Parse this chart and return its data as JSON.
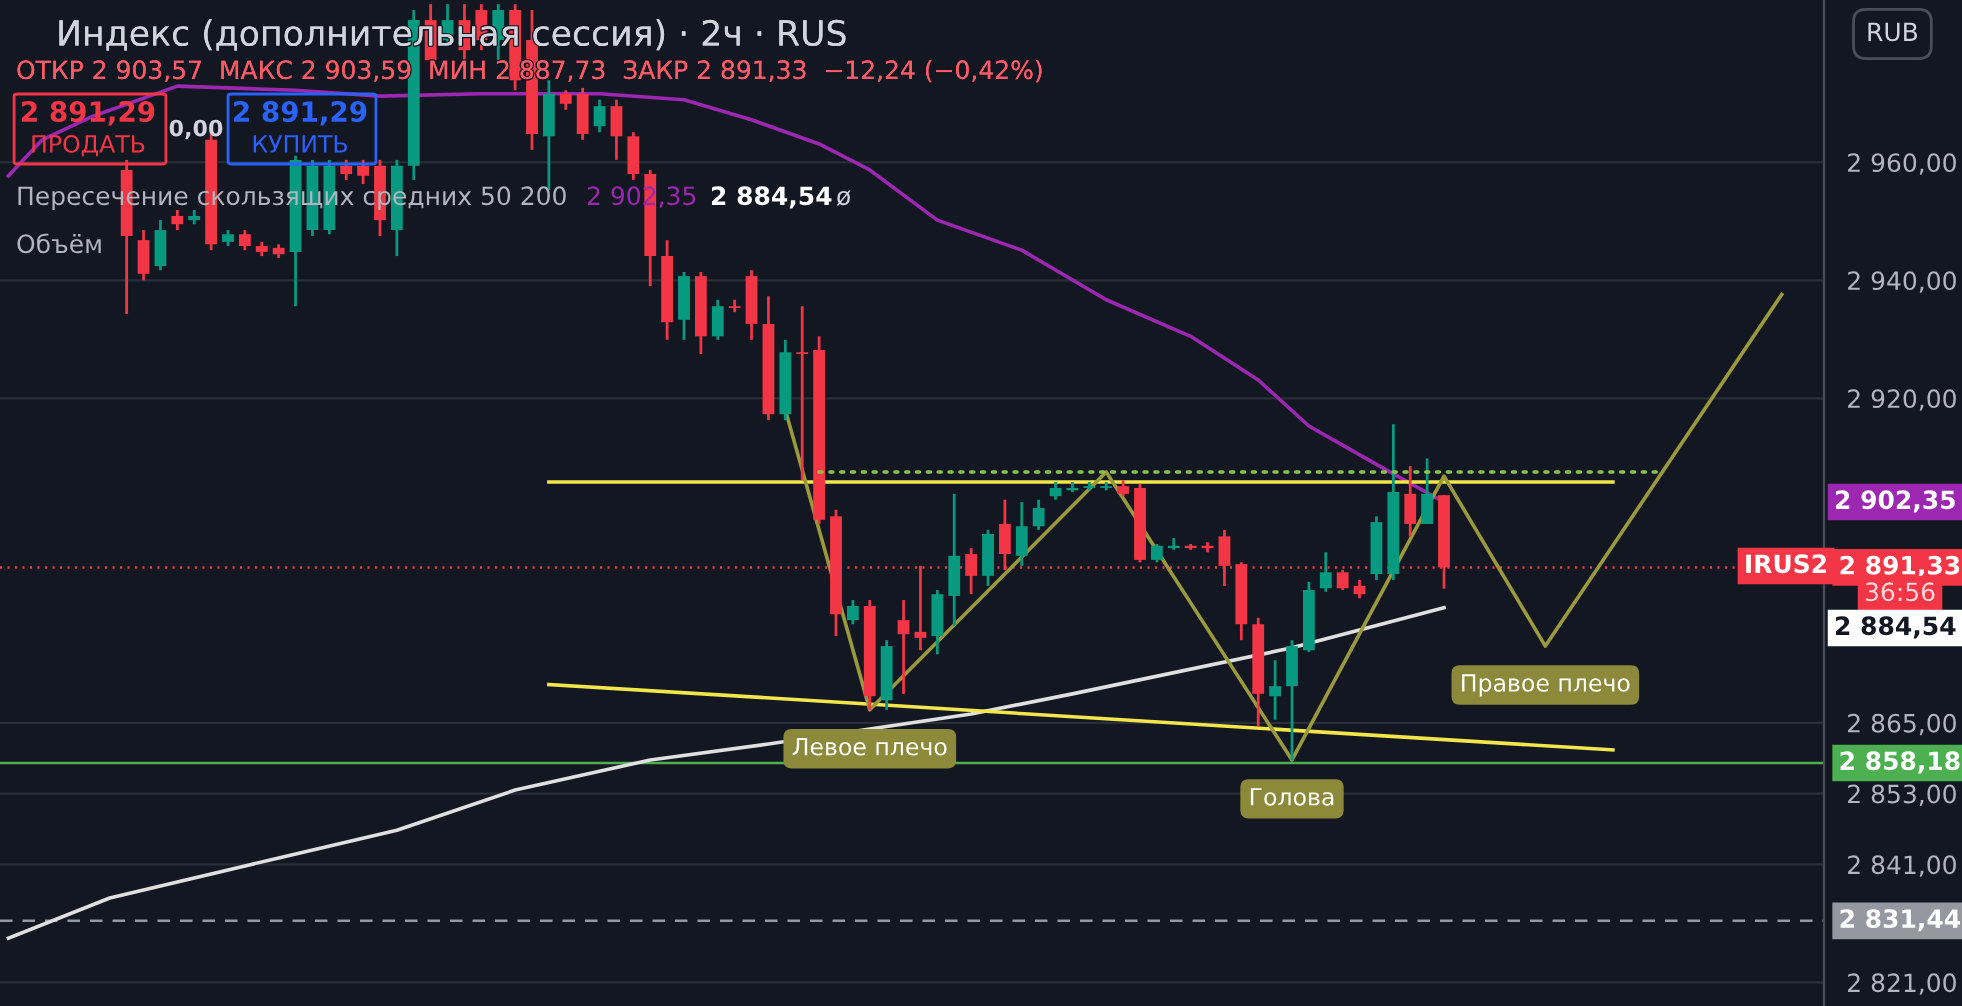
{
  "chart_data": {
    "type": "candlestick",
    "title": "Индекс (дополнительная сессия) · 2ч · RUS",
    "subtitle": "ОТКР 2 903,57  МАКС 2 903,59  МИН 2 887,73  ЗАКР 2 891,33  −12,24 (−0,42%)",
    "categories": [
      null,
      null,
      null,
      null,
      null,
      null,
      null,
      null,
      null,
      null,
      null,
      null,
      null,
      null,
      null,
      null,
      null,
      null,
      null,
      null,
      null,
      null,
      null,
      null,
      null,
      null,
      null,
      null,
      null,
      null,
      null,
      null,
      null,
      null,
      null,
      null,
      null,
      null,
      null,
      null,
      null,
      null,
      null,
      null,
      null,
      null,
      null,
      null,
      null,
      null,
      null,
      null,
      null,
      null,
      null,
      null,
      null,
      null,
      null,
      null,
      null,
      null,
      null,
      null,
      null,
      null,
      null,
      null,
      null,
      null,
      null,
      null,
      null,
      null,
      null,
      null,
      null,
      null,
      null,
      null,
      null,
      null,
      null,
      null,
      null,
      null,
      null,
      null,
      null,
      null,
      null,
      null,
      null,
      null,
      null,
      null,
      null,
      null,
      null,
      null,
      null,
      null,
      null,
      null,
      null,
      null,
      null,
      null
    ],
    "ohlc": [
      null,
      null,
      null,
      null,
      null,
      null,
      null,
      [
        2958.7,
        2960.4,
        2934.3,
        2947.5
      ],
      [
        2946.8,
        2948.5,
        2940.0,
        2941.1
      ],
      [
        2942.4,
        2950.2,
        2941.7,
        2948.5
      ],
      [
        2950.9,
        2951.9,
        2948.5,
        2949.5
      ],
      [
        2950.2,
        2951.9,
        2949.5,
        2950.9
      ],
      [
        2963.8,
        2965.5,
        2945.1,
        2946.1
      ],
      [
        2946.5,
        2948.5,
        2945.8,
        2947.8
      ],
      [
        2947.8,
        2948.5,
        2945.1,
        2945.8
      ],
      [
        2945.8,
        2946.5,
        2944.1,
        2944.8
      ],
      [
        2945.5,
        2946.1,
        2943.8,
        2944.4
      ],
      [
        2944.8,
        2961.1,
        2935.6,
        2960.4
      ],
      [
        2948.5,
        2960.4,
        2947.5,
        2959.4
      ],
      [
        2948.5,
        2960.4,
        2947.8,
        2959.4
      ],
      [
        2959.4,
        2960.4,
        2957.0,
        2958.0
      ],
      [
        2959.4,
        2960.4,
        2956.3,
        2957.7
      ],
      [
        2959.4,
        2960.4,
        2947.5,
        2950.2
      ],
      [
        2948.5,
        2960.4,
        2944.1,
        2959.4
      ],
      [
        2959.4,
        2985.8,
        2957.0,
        2984.1
      ],
      [
        2984.1,
        2986.8,
        2975.6,
        2977.3
      ],
      [
        2980.7,
        2986.8,
        2980.0,
        2984.1
      ],
      [
        2984.1,
        2986.8,
        2977.3,
        2979.0
      ],
      [
        2985.8,
        2986.8,
        2979.0,
        2980.7
      ],
      [
        2980.7,
        2986.8,
        2977.3,
        2985.8
      ],
      [
        2985.8,
        2986.8,
        2972.2,
        2973.9
      ],
      [
        2980.7,
        2985.8,
        2962.1,
        2964.8
      ],
      [
        2964.4,
        2973.9,
        2955.3,
        2971.6
      ],
      [
        2971.6,
        2972.2,
        2968.9,
        2969.9
      ],
      [
        2971.6,
        2972.6,
        2963.8,
        2964.8
      ],
      [
        2966.1,
        2970.6,
        2965.1,
        2969.5
      ],
      [
        2969.5,
        2970.6,
        2960.4,
        2964.4
      ],
      [
        2964.4,
        2965.1,
        2957.0,
        2958.0
      ],
      [
        2958.0,
        2958.7,
        2939.0,
        2944.1
      ],
      [
        2944.1,
        2946.8,
        2929.9,
        2932.9
      ],
      [
        2933.3,
        2941.4,
        2929.9,
        2940.7
      ],
      [
        2940.7,
        2941.4,
        2927.5,
        2930.5
      ],
      [
        2930.5,
        2936.7,
        2929.9,
        2935.6
      ],
      [
        2935.6,
        2936.7,
        2934.6,
        2935.3
      ],
      [
        2940.7,
        2941.7,
        2929.9,
        2932.6
      ],
      [
        2932.6,
        2937.3,
        2916.3,
        2917.3
      ],
      [
        2917.3,
        2929.9,
        2916.3,
        2927.8
      ],
      [
        2927.8,
        2935.6,
        2906.1,
        2927.5
      ],
      [
        2928.2,
        2930.5,
        2898.7,
        2899.4
      ],
      [
        2900.0,
        2901.1,
        2879.7,
        2883.4
      ],
      [
        2882.4,
        2885.8,
        2881.7,
        2884.8
      ],
      [
        2884.8,
        2885.8,
        2867.2,
        2869.5
      ],
      [
        2868.8,
        2879.0,
        2867.2,
        2878.0
      ],
      [
        2882.4,
        2885.8,
        2869.9,
        2880.0
      ],
      [
        2880.4,
        2891.6,
        2877.3,
        2879.4
      ],
      [
        2879.7,
        2887.5,
        2876.6,
        2886.8
      ],
      [
        2886.5,
        2903.8,
        2881.4,
        2893.3
      ],
      [
        2893.6,
        2894.6,
        2886.8,
        2889.9
      ],
      [
        2889.9,
        2897.7,
        2888.2,
        2897.0
      ],
      [
        2898.7,
        2902.8,
        2890.9,
        2893.6
      ],
      [
        2893.3,
        2902.4,
        2891.6,
        2898.3
      ],
      [
        2898.3,
        2902.8,
        2897.7,
        2901.4
      ],
      [
        2903.4,
        2905.8,
        2902.8,
        2904.8
      ],
      [
        2904.4,
        2905.8,
        2904.1,
        2904.8
      ],
      [
        2904.8,
        2905.8,
        2904.4,
        2905.1
      ],
      [
        2904.8,
        2905.8,
        2904.4,
        2905.1
      ],
      [
        2905.1,
        2906.1,
        2903.4,
        2903.8
      ],
      [
        2904.8,
        2905.5,
        2892.2,
        2892.6
      ],
      [
        2892.6,
        2895.3,
        2892.2,
        2895.0
      ],
      [
        2894.6,
        2896.3,
        2894.3,
        2895.0
      ],
      [
        2895.0,
        2895.3,
        2894.3,
        2894.6
      ],
      [
        2895.0,
        2895.6,
        2893.9,
        2894.6
      ],
      [
        2896.6,
        2897.7,
        2888.2,
        2891.6
      ],
      [
        2891.9,
        2892.2,
        2879.0,
        2881.7
      ],
      [
        2881.7,
        2882.8,
        2864.4,
        2869.9
      ],
      [
        2869.5,
        2875.6,
        2865.5,
        2871.2
      ],
      [
        2871.2,
        2879.0,
        2858.7,
        2878.0
      ],
      [
        2877.3,
        2888.9,
        2877.0,
        2887.5
      ],
      [
        2887.8,
        2893.9,
        2887.2,
        2890.5
      ],
      [
        2890.5,
        2890.9,
        2887.5,
        2887.8
      ],
      [
        2888.2,
        2889.2,
        2886.1,
        2886.8
      ],
      [
        2890.2,
        2900.0,
        2889.2,
        2899.0
      ],
      [
        2890.2,
        2915.6,
        2889.2,
        2904.1
      ],
      [
        2903.8,
        2908.5,
        2896.6,
        2898.7
      ],
      [
        2898.7,
        2909.8,
        2898.7,
        2903.8
      ],
      [
        2903.57,
        2903.59,
        2887.73,
        2891.33
      ],
      null,
      null,
      null,
      null,
      null,
      null,
      null,
      null,
      null,
      null,
      null,
      null,
      null,
      null,
      null,
      null,
      null,
      null,
      null,
      null,
      null,
      null
    ],
    "series": [
      {
        "type": "line",
        "color": "#9c27b0",
        "values": [
          2957.7,
          null,
          2963.8,
          null,
          null,
          2967.8,
          null,
          null,
          null,
          null,
          2972.9,
          null,
          null,
          null,
          null,
          null,
          null,
          2972.2,
          null,
          null,
          null,
          null,
          2971.2,
          null,
          null,
          null,
          null,
          null,
          2971.6,
          null,
          null,
          null,
          null,
          null,
          null,
          2971.6,
          null,
          null,
          null,
          null,
          2970.6,
          null,
          null,
          null,
          2967.2,
          null,
          null,
          null,
          2963.1,
          null,
          null,
          2958.7,
          null,
          null,
          null,
          2950.2,
          null,
          null,
          null,
          null,
          2945.1,
          null,
          null,
          null,
          null,
          2936.7,
          null,
          null,
          null,
          null,
          2930.5,
          null,
          null,
          null,
          2923.1,
          null,
          null,
          2915.3,
          null,
          null,
          null,
          2908.8,
          null,
          null,
          null,
          2902.4,
          null,
          null,
          null,
          null,
          null,
          null,
          null,
          null,
          null,
          null,
          null,
          null,
          null,
          null,
          null,
          null,
          null,
          null,
          null,
          null,
          null,
          null
        ]
      },
      {
        "type": "line",
        "color": "#e0e0e0",
        "values": [
          2828.5,
          null,
          null,
          null,
          null,
          null,
          2835.3,
          null,
          null,
          null,
          null,
          null,
          null,
          null,
          null,
          null,
          2842.1,
          null,
          null,
          null,
          null,
          null,
          null,
          2846.8,
          null,
          null,
          null,
          null,
          null,
          null,
          2853.6,
          null,
          null,
          null,
          null,
          null,
          null,
          null,
          2858.7,
          null,
          null,
          null,
          null,
          null,
          null,
          2861.4,
          null,
          null,
          null,
          null,
          null,
          null,
          null,
          null,
          null,
          null,
          null,
          2866.5,
          null,
          null,
          null,
          null,
          null,
          2869.9,
          null,
          null,
          null,
          null,
          null,
          null,
          null,
          null,
          null,
          null,
          null,
          null,
          2877.7,
          null,
          null,
          null,
          null,
          null,
          null,
          null,
          null,
          2884.5,
          null,
          null,
          null,
          null,
          null,
          null,
          null,
          null,
          null,
          null,
          null,
          null,
          null,
          null,
          null,
          null,
          null,
          null,
          null,
          null,
          null,
          null
        ]
      },
      {
        "type": "line",
        "color": "#f2e64b",
        "values": [
          null,
          null,
          null,
          null,
          null,
          null,
          null,
          null,
          null,
          null,
          null,
          null,
          null,
          null,
          null,
          null,
          null,
          null,
          null,
          null,
          null,
          null,
          null,
          null,
          null,
          null,
          null,
          null,
          null,
          null,
          null,
          null,
          2905.8,
          null,
          null,
          null,
          null,
          null,
          null,
          null,
          null,
          null,
          null,
          null,
          null,
          null,
          null,
          null,
          null,
          null,
          null,
          null,
          null,
          null,
          null,
          null,
          null,
          null,
          null,
          null,
          null,
          null,
          null,
          null,
          null,
          null,
          null,
          null,
          null,
          null,
          null,
          null,
          null,
          null,
          null,
          null,
          null,
          null,
          null,
          null,
          null,
          null,
          null,
          null,
          null,
          null,
          null,
          null,
          null,
          null,
          null,
          null,
          null,
          null,
          null,
          2905.8,
          null,
          null,
          null,
          null,
          null,
          null,
          null,
          null,
          null,
          null,
          null,
          null
        ]
      },
      {
        "type": "line",
        "color": "#f2e64b",
        "values": [
          null,
          null,
          null,
          null,
          null,
          null,
          null,
          null,
          null,
          null,
          null,
          null,
          null,
          null,
          null,
          null,
          null,
          null,
          null,
          null,
          null,
          null,
          null,
          null,
          null,
          null,
          null,
          null,
          null,
          null,
          null,
          null,
          2871.5,
          null,
          null,
          null,
          null,
          null,
          null,
          null,
          null,
          null,
          null,
          null,
          null,
          null,
          null,
          null,
          null,
          null,
          null,
          null,
          null,
          null,
          null,
          null,
          null,
          null,
          null,
          null,
          null,
          null,
          null,
          null,
          null,
          null,
          null,
          null,
          null,
          null,
          null,
          null,
          null,
          null,
          null,
          null,
          null,
          null,
          null,
          null,
          null,
          null,
          null,
          null,
          null,
          null,
          null,
          null,
          null,
          null,
          null,
          null,
          null,
          null,
          null,
          2860.4,
          null,
          null,
          null,
          null,
          null,
          null,
          null,
          null,
          null,
          null,
          null,
          null
        ]
      },
      {
        "type": "line",
        "color": "#8bc34a",
        "line_style": "dotted",
        "values": [
          null,
          null,
          null,
          null,
          null,
          null,
          null,
          null,
          null,
          null,
          null,
          null,
          null,
          null,
          null,
          null,
          null,
          null,
          null,
          null,
          null,
          null,
          null,
          null,
          null,
          null,
          null,
          null,
          null,
          null,
          null,
          null,
          null,
          null,
          null,
          null,
          null,
          null,
          null,
          null,
          null,
          null,
          null,
          null,
          null,
          null,
          null,
          null,
          2907.5,
          null,
          null,
          null,
          null,
          null,
          null,
          null,
          null,
          null,
          null,
          null,
          null,
          null,
          null,
          null,
          null,
          null,
          null,
          null,
          null,
          null,
          null,
          null,
          null,
          null,
          null,
          null,
          null,
          null,
          null,
          null,
          null,
          null,
          null,
          null,
          null,
          null,
          null,
          null,
          null,
          null,
          null,
          null,
          null,
          null,
          null,
          null,
          null,
          null,
          2907.5,
          null,
          null,
          null,
          null,
          null,
          null,
          null,
          null,
          null
        ]
      },
      {
        "type": "line",
        "color": "#9a9a3c",
        "values": [
          null,
          null,
          null,
          null,
          null,
          null,
          null,
          null,
          null,
          null,
          null,
          null,
          null,
          null,
          null,
          null,
          null,
          null,
          null,
          null,
          null,
          null,
          null,
          null,
          null,
          null,
          null,
          null,
          null,
          null,
          null,
          null,
          null,
          null,
          null,
          null,
          null,
          null,
          null,
          null,
          null,
          null,
          null,
          null,
          null,
          null,
          2918.0,
          null,
          null,
          null,
          null,
          2867.2,
          null,
          null,
          null,
          null,
          null,
          null,
          null,
          null,
          null,
          null,
          null,
          null,
          null,
          2907.5,
          null,
          null,
          null,
          null,
          null,
          null,
          null,
          null,
          null,
          null,
          2858.7,
          null,
          null,
          null,
          null,
          null,
          null,
          null,
          null,
          2906.8,
          null,
          null,
          null,
          null,
          null,
          2878.0,
          null,
          null,
          null,
          null,
          null,
          null,
          null,
          null,
          null,
          null,
          null,
          null,
          null,
          2937.6,
          null,
          null
        ]
      }
    ],
    "ylim": [
      2817,
      2987.5
    ],
    "yticks": [
      {
        "value": 2821,
        "label": "2 821,00"
      },
      {
        "value": 2841,
        "label": "2 841,00"
      },
      {
        "value": 2853,
        "label": "2 853,00"
      },
      {
        "value": 2865,
        "label": "2 865,00"
      },
      {
        "value": 2920,
        "label": "2 920,00"
      },
      {
        "value": 2940,
        "label": "2 940,00"
      },
      {
        "value": 2960,
        "label": "2 960,00"
      }
    ],
    "tick_labels": "y",
    "grid": "y",
    "ref_lines": [
      {
        "axis": "y",
        "value": 2858.18,
        "label": "2 858,18",
        "color": "#4caf50",
        "line_style": "solid"
      },
      {
        "axis": "y",
        "value": 2891.33,
        "label": "2 891,33",
        "color": "#f23645",
        "line_style": "dotted"
      },
      {
        "axis": "y",
        "value": 2831.44,
        "label": "2 831,44",
        "color": "#9598a1",
        "line_style": "dashed"
      }
    ],
    "annotations": [
      "2 891,29",
      "ПРОДАТЬ",
      "0,00",
      "2 891,29",
      "КУПИТЬ",
      "Пересечение скользящих средних 50 200",
      "2 902,35",
      "2 884,54",
      "ø",
      "Объём",
      "RUB",
      "IRUS2",
      "36:56",
      "2 902,35",
      "2 884,54",
      "Левое плечо",
      "Голова",
      "Правое плечо"
    ]
  }
}
